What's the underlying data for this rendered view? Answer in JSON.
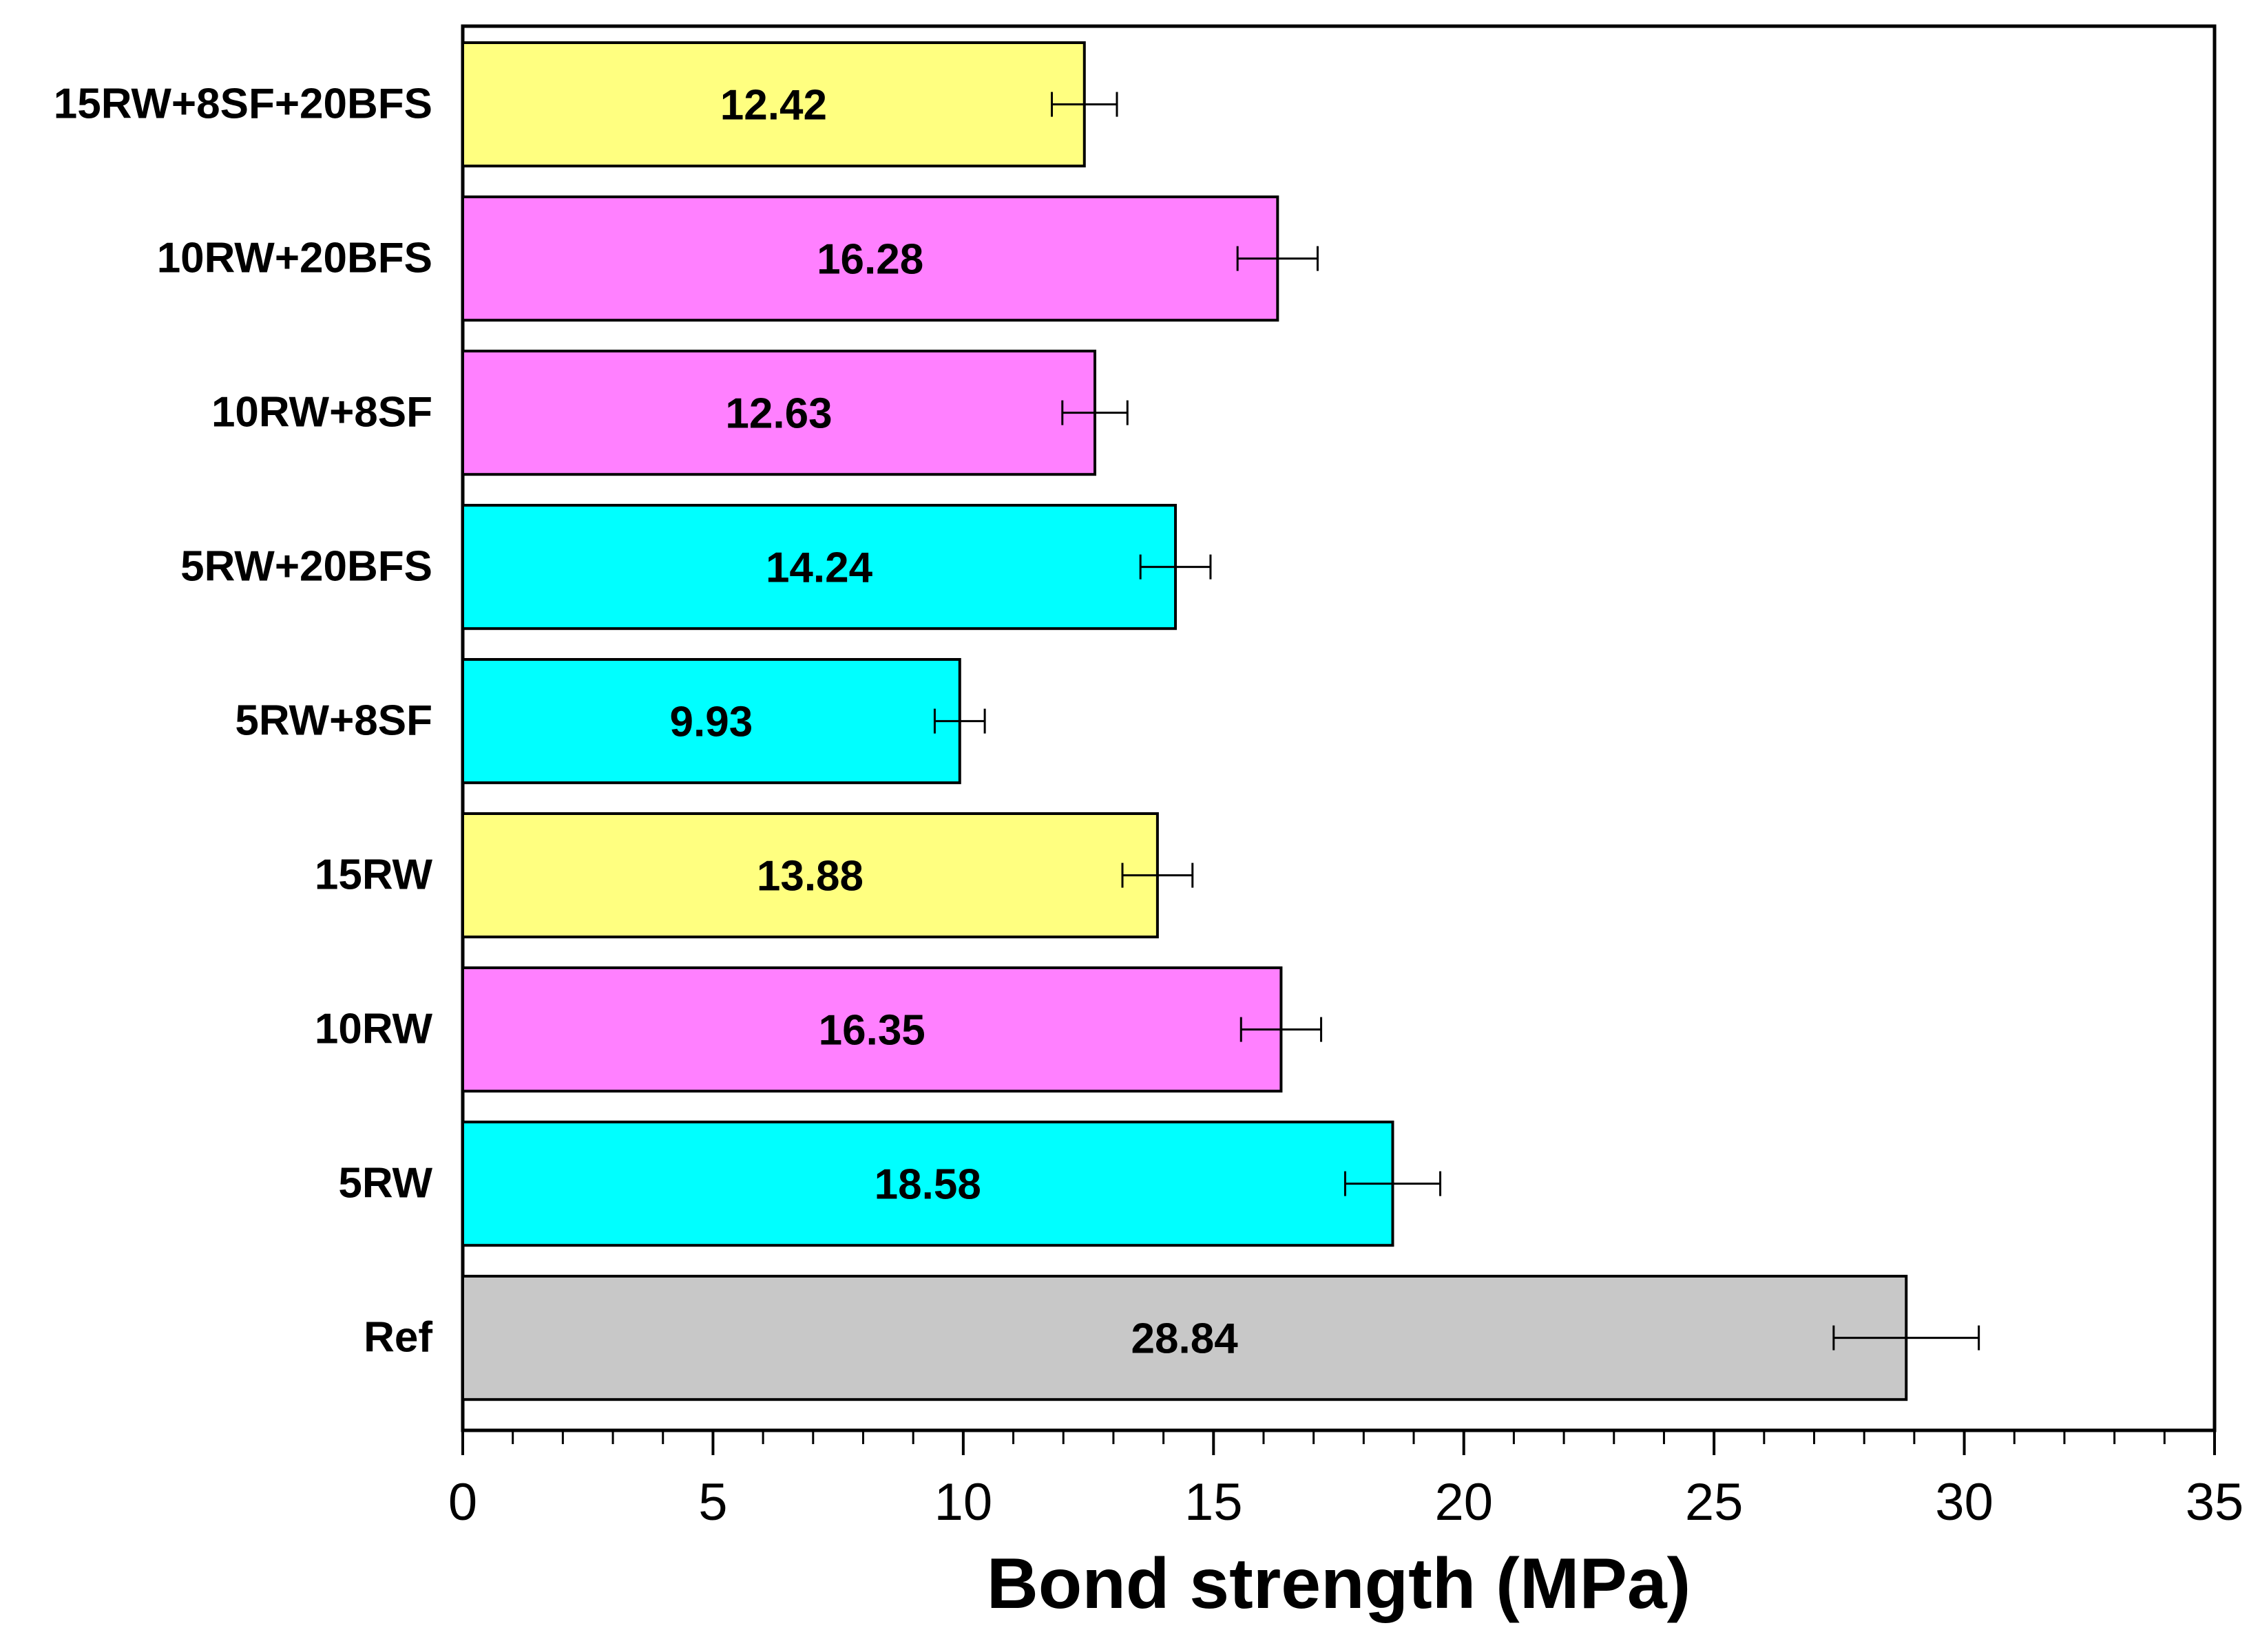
{
  "chart_data": {
    "type": "bar",
    "orientation": "horizontal",
    "title": "",
    "xlabel": "Bond strength (MPa)",
    "ylabel": "",
    "xlim": [
      0,
      35
    ],
    "xticks": [
      "0",
      "5",
      "10",
      "15",
      "20",
      "25",
      "30",
      "35"
    ],
    "grid": false,
    "categories": [
      "15RW+8SF+20BFS",
      "10RW+20BFS",
      "10RW+8SF",
      "5RW+20BFS",
      "5RW+8SF",
      "15RW",
      "10RW",
      "5RW",
      "Ref"
    ],
    "values": [
      12.42,
      16.28,
      12.63,
      14.24,
      9.93,
      13.88,
      16.35,
      18.58,
      28.84
    ],
    "value_labels": [
      "12.42",
      "16.28",
      "12.63",
      "14.24",
      "9.93",
      "13.88",
      "16.35",
      "18.58",
      "28.84"
    ],
    "errors": [
      0.65,
      0.8,
      0.65,
      0.7,
      0.5,
      0.7,
      0.8,
      0.95,
      1.45
    ],
    "colors": [
      "#ffff80",
      "#ff80ff",
      "#ff80ff",
      "#00ffff",
      "#00ffff",
      "#ffff80",
      "#ff80ff",
      "#00ffff",
      "#c8c8c8"
    ]
  }
}
